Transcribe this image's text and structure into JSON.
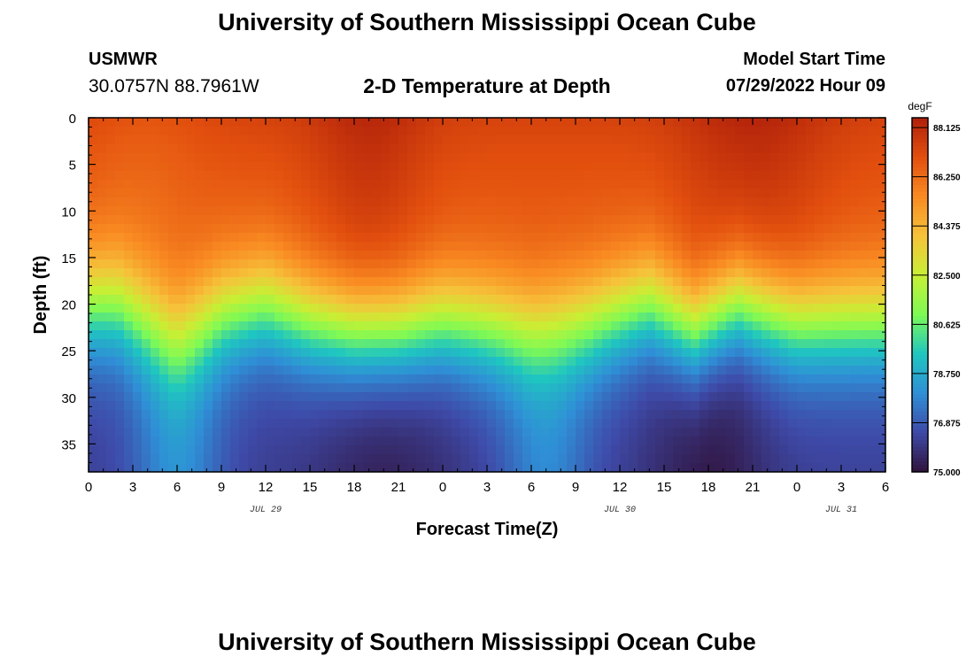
{
  "header": {
    "title": "University of Southern Mississippi Ocean Cube",
    "station": "USMWR",
    "coordinates": "30.0757N  88.7961W",
    "subtitle": "2-D Temperature at Depth",
    "model_start_label": "Model Start Time",
    "model_start_value": "07/29/2022 Hour 09"
  },
  "footer": {
    "title": "University of Southern Mississippi Ocean Cube"
  },
  "chart_data": {
    "type": "heatmap",
    "title": "2-D Temperature at Depth",
    "xlabel": "Forecast Time(Z)",
    "ylabel": "Depth (ft)",
    "x_range_hours": [
      0,
      54
    ],
    "x_tick_labels": [
      "0",
      "3",
      "6",
      "9",
      "12",
      "15",
      "18",
      "21",
      "0",
      "3",
      "6",
      "9",
      "12",
      "15",
      "18",
      "21",
      "0",
      "3",
      "6"
    ],
    "date_labels": [
      {
        "text": "JUL 29",
        "hour": 12
      },
      {
        "text": "JUL 30",
        "hour": 36
      },
      {
        "text": "JUL 31",
        "hour": 51
      }
    ],
    "y_range": [
      0,
      38
    ],
    "y_ticks": [
      0,
      5,
      10,
      15,
      20,
      25,
      30,
      35
    ],
    "colorbar": {
      "label": "degF",
      "min": 75.0,
      "max": 88.5,
      "tick_values": [
        88.125,
        86.25,
        84.375,
        82.5,
        80.625,
        78.75,
        76.875,
        75.0
      ],
      "tick_labels": [
        "88.125",
        "86.250",
        "84.375",
        "82.500",
        "80.625",
        "78.750",
        "76.875",
        "75.000"
      ],
      "colors": [
        "#30123b",
        "#3e4aa8",
        "#2f8fd6",
        "#1fc6c0",
        "#7efa55",
        "#c8ef34",
        "#f6c23a",
        "#f98a22",
        "#e24f0e",
        "#b0200a"
      ]
    },
    "thermocline_depth_ft": [
      {
        "hour": 0,
        "depth": 20
      },
      {
        "hour": 2,
        "depth": 20
      },
      {
        "hour": 6,
        "depth": 24
      },
      {
        "hour": 9,
        "depth": 21
      },
      {
        "hour": 12,
        "depth": 20
      },
      {
        "hour": 15,
        "depth": 22
      },
      {
        "hour": 18,
        "depth": 23
      },
      {
        "hour": 21,
        "depth": 23
      },
      {
        "hour": 24,
        "depth": 22
      },
      {
        "hour": 30,
        "depth": 23
      },
      {
        "hour": 34,
        "depth": 22
      },
      {
        "hour": 38,
        "depth": 20
      },
      {
        "hour": 41,
        "depth": 23
      },
      {
        "hour": 44,
        "depth": 20
      },
      {
        "hour": 48,
        "depth": 22
      },
      {
        "hour": 54,
        "depth": 22
      }
    ]
  }
}
